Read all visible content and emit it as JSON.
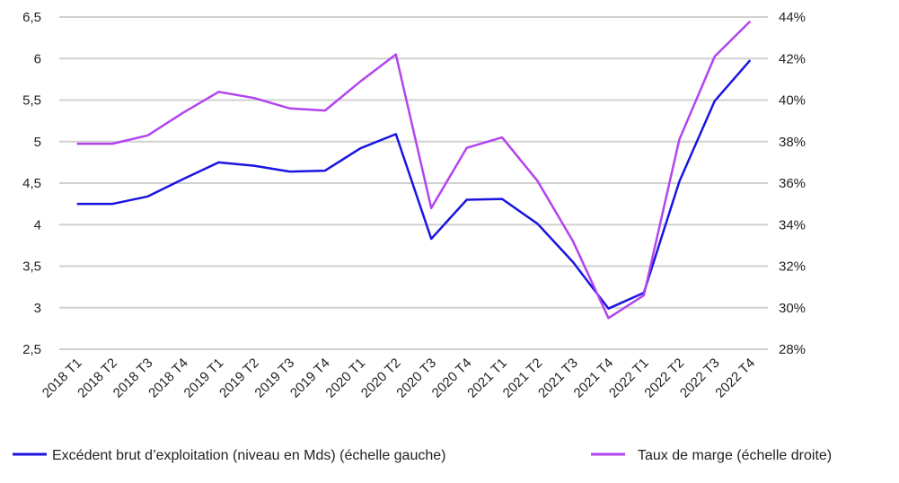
{
  "chart_data": {
    "type": "line",
    "categories": [
      "2018 T1",
      "2018 T2",
      "2018 T3",
      "2018 T4",
      "2019 T1",
      "2019 T2",
      "2019 T3",
      "2019 T4",
      "2020 T1",
      "2020 T2",
      "2020 T3",
      "2020 T4",
      "2021 T1",
      "2021 T2",
      "2021 T3",
      "2021 T4",
      "2022 T1",
      "2022 T2",
      "2022 T3",
      "2022 T4"
    ],
    "left_axis": {
      "ylim": [
        2.5,
        6.5
      ],
      "ticks": [
        2.5,
        3,
        3.5,
        4,
        4.5,
        5,
        5.5,
        6,
        6.5
      ],
      "tick_labels": [
        "2,5",
        "3",
        "3,5",
        "4",
        "4,5",
        "5",
        "5,5",
        "6",
        "6,5"
      ]
    },
    "right_axis": {
      "ylim": [
        28,
        44
      ],
      "ticks": [
        28,
        30,
        32,
        34,
        36,
        38,
        40,
        42,
        44
      ],
      "tick_labels": [
        "28%",
        "30%",
        "32%",
        "34%",
        "36%",
        "38%",
        "40%",
        "42%",
        "44%"
      ]
    },
    "series": [
      {
        "name": "Excédent brut d’exploitation (niveau en Mds) (échelle gauche)",
        "axis": "left",
        "color": "#1a14e0",
        "values": [
          4.25,
          4.25,
          4.34,
          4.55,
          4.75,
          4.71,
          4.64,
          4.65,
          4.92,
          5.09,
          3.83,
          4.3,
          4.31,
          4.01,
          3.55,
          2.99,
          3.18,
          4.52,
          5.49,
          5.98
        ]
      },
      {
        "name": "Taux de marge (échelle droite)",
        "axis": "right",
        "color": "#b344ee",
        "values": [
          37.9,
          37.9,
          38.3,
          39.4,
          40.4,
          40.1,
          39.6,
          39.5,
          40.9,
          42.2,
          34.8,
          37.7,
          38.2,
          36.1,
          33.2,
          29.5,
          30.6,
          38.1,
          42.1,
          43.8
        ]
      }
    ],
    "grid": true,
    "legend_position": "bottom"
  }
}
